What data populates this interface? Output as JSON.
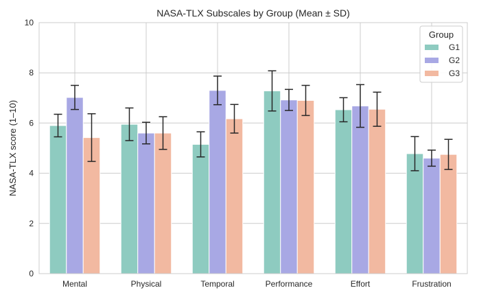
{
  "chart_data": {
    "type": "bar",
    "title": "NASA-TLX Subscales by Group (Mean ± SD)",
    "xlabel": "",
    "ylabel": "NASA-TLX score (1–10)",
    "ylim": [
      0,
      10
    ],
    "yticks": [
      "0",
      "2",
      "4",
      "6",
      "8",
      "10"
    ],
    "grid": true,
    "categories": [
      "Mental",
      "Physical",
      "Temporal",
      "Performance",
      "Effort",
      "Frustration"
    ],
    "legend": {
      "title": "Group",
      "placement": "top-right"
    },
    "series": [
      {
        "name": "G1",
        "color": "#8ecbc0",
        "values": [
          5.9,
          5.95,
          5.15,
          7.28,
          6.53,
          4.78
        ],
        "sd": [
          0.45,
          0.65,
          0.5,
          0.8,
          0.48,
          0.68
        ]
      },
      {
        "name": "G2",
        "color": "#a8a8e4",
        "values": [
          7.02,
          5.6,
          7.3,
          6.92,
          6.68,
          4.6
        ],
        "sd": [
          0.48,
          0.43,
          0.57,
          0.42,
          0.85,
          0.32
        ]
      },
      {
        "name": "G3",
        "color": "#f2b9a1",
        "values": [
          5.42,
          5.6,
          6.17,
          6.9,
          6.55,
          4.75
        ],
        "sd": [
          0.95,
          0.65,
          0.57,
          0.6,
          0.68,
          0.6
        ]
      }
    ]
  }
}
